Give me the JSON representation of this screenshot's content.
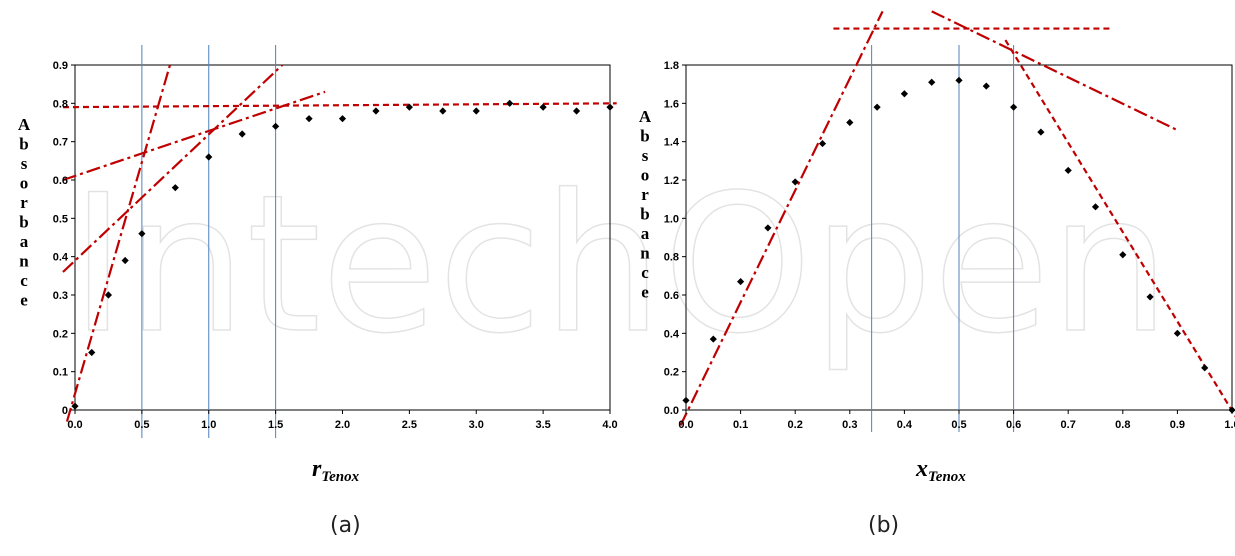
{
  "watermark": "IntechOpen",
  "colors": {
    "fit_lines": "#c00000",
    "guide_lines": "#4f81bd",
    "points": "#000000"
  },
  "chart_data": [
    {
      "panel": "(a)",
      "type": "scatter",
      "ylabel": "Absorbance",
      "xlabel_main": "r",
      "xlabel_sub": "Tenox",
      "xlim": [
        0,
        4.0
      ],
      "ylim": [
        0,
        0.9
      ],
      "xticks": [
        0.0,
        0.5,
        1.0,
        1.5,
        2.0,
        2.5,
        3.0,
        3.5,
        4.0
      ],
      "yticks": [
        0,
        0.1,
        0.2,
        0.3,
        0.4,
        0.5,
        0.6,
        0.7,
        0.8,
        0.9
      ],
      "xtick_labels": [
        "0.0",
        "0.5",
        "1.0",
        "1.5",
        "2.0",
        "2.5",
        "3.0",
        "3.5",
        "4.0"
      ],
      "ytick_labels": [
        "0",
        "0.1",
        "0.2",
        "0.3",
        "0.4",
        "0.5",
        "0.6",
        "0.7",
        "0.8",
        "0.9"
      ],
      "grid": false,
      "points": [
        [
          0.0,
          0.01
        ],
        [
          0.125,
          0.15
        ],
        [
          0.25,
          0.3
        ],
        [
          0.375,
          0.39
        ],
        [
          0.5,
          0.46
        ],
        [
          0.75,
          0.58
        ],
        [
          1.0,
          0.66
        ],
        [
          1.25,
          0.72
        ],
        [
          1.5,
          0.74
        ],
        [
          1.75,
          0.76
        ],
        [
          2.0,
          0.76
        ],
        [
          2.25,
          0.78
        ],
        [
          2.5,
          0.79
        ],
        [
          2.75,
          0.78
        ],
        [
          3.0,
          0.78
        ],
        [
          3.25,
          0.8
        ],
        [
          3.5,
          0.79
        ],
        [
          3.75,
          0.78
        ],
        [
          4.0,
          0.79
        ]
      ],
      "vertical_lines": [
        0.5,
        1.0,
        1.5
      ],
      "fit_lines": [
        {
          "style": "dash-dot",
          "from": [
            -0.06,
            -0.03
          ],
          "to": [
            0.71,
            0.9
          ]
        },
        {
          "style": "dash-dot",
          "from": [
            -0.09,
            0.36
          ],
          "to": [
            1.55,
            0.9
          ]
        },
        {
          "style": "dash-dot",
          "from": [
            -0.09,
            0.6
          ],
          "to": [
            1.87,
            0.83
          ]
        },
        {
          "style": "dash",
          "from": [
            -0.09,
            0.79
          ],
          "to": [
            4.05,
            0.8
          ]
        }
      ]
    },
    {
      "panel": "(b)",
      "type": "scatter",
      "ylabel": "Absorbance",
      "xlabel_main": "x",
      "xlabel_sub": "Tenox",
      "xlim": [
        0,
        1.0
      ],
      "ylim": [
        0,
        1.8
      ],
      "xticks": [
        0.0,
        0.1,
        0.2,
        0.3,
        0.4,
        0.5,
        0.6,
        0.7,
        0.8,
        0.9,
        1.0
      ],
      "yticks": [
        0.0,
        0.2,
        0.4,
        0.6,
        0.8,
        1.0,
        1.2,
        1.4,
        1.6,
        1.8
      ],
      "xtick_labels": [
        "0.0",
        "0.1",
        "0.2",
        "0.3",
        "0.4",
        "0.5",
        "0.6",
        "0.7",
        "0.8",
        "0.9",
        "1.0"
      ],
      "ytick_labels": [
        "0.0",
        "0.2",
        "0.4",
        "0.6",
        "0.8",
        "1.0",
        "1.2",
        "1.4",
        "1.6",
        "1.8"
      ],
      "grid": false,
      "points": [
        [
          0.0,
          0.05
        ],
        [
          0.05,
          0.37
        ],
        [
          0.1,
          0.67
        ],
        [
          0.15,
          0.95
        ],
        [
          0.2,
          1.19
        ],
        [
          0.25,
          1.39
        ],
        [
          0.3,
          1.5
        ],
        [
          0.35,
          1.58
        ],
        [
          0.4,
          1.65
        ],
        [
          0.45,
          1.71
        ],
        [
          0.5,
          1.72
        ],
        [
          0.55,
          1.69
        ],
        [
          0.6,
          1.58
        ],
        [
          0.65,
          1.45
        ],
        [
          0.7,
          1.25
        ],
        [
          0.75,
          1.06
        ],
        [
          0.8,
          0.81
        ],
        [
          0.85,
          0.59
        ],
        [
          0.9,
          0.4
        ],
        [
          0.95,
          0.22
        ],
        [
          1.0,
          0.0
        ]
      ],
      "vertical_lines": [
        0.34,
        0.5,
        0.6
      ],
      "fit_lines": [
        {
          "style": "dash-dot",
          "from": [
            -0.01,
            -0.08
          ],
          "to": [
            0.36,
            2.08
          ]
        },
        {
          "style": "dash",
          "from": [
            0.27,
            1.99
          ],
          "to": [
            0.78,
            1.99
          ]
        },
        {
          "style": "dash-dot",
          "from": [
            0.45,
            2.08
          ],
          "to": [
            0.9,
            1.46
          ]
        },
        {
          "style": "dash",
          "from": [
            0.585,
            1.93
          ],
          "to": [
            1.01,
            -0.05
          ]
        }
      ]
    }
  ]
}
